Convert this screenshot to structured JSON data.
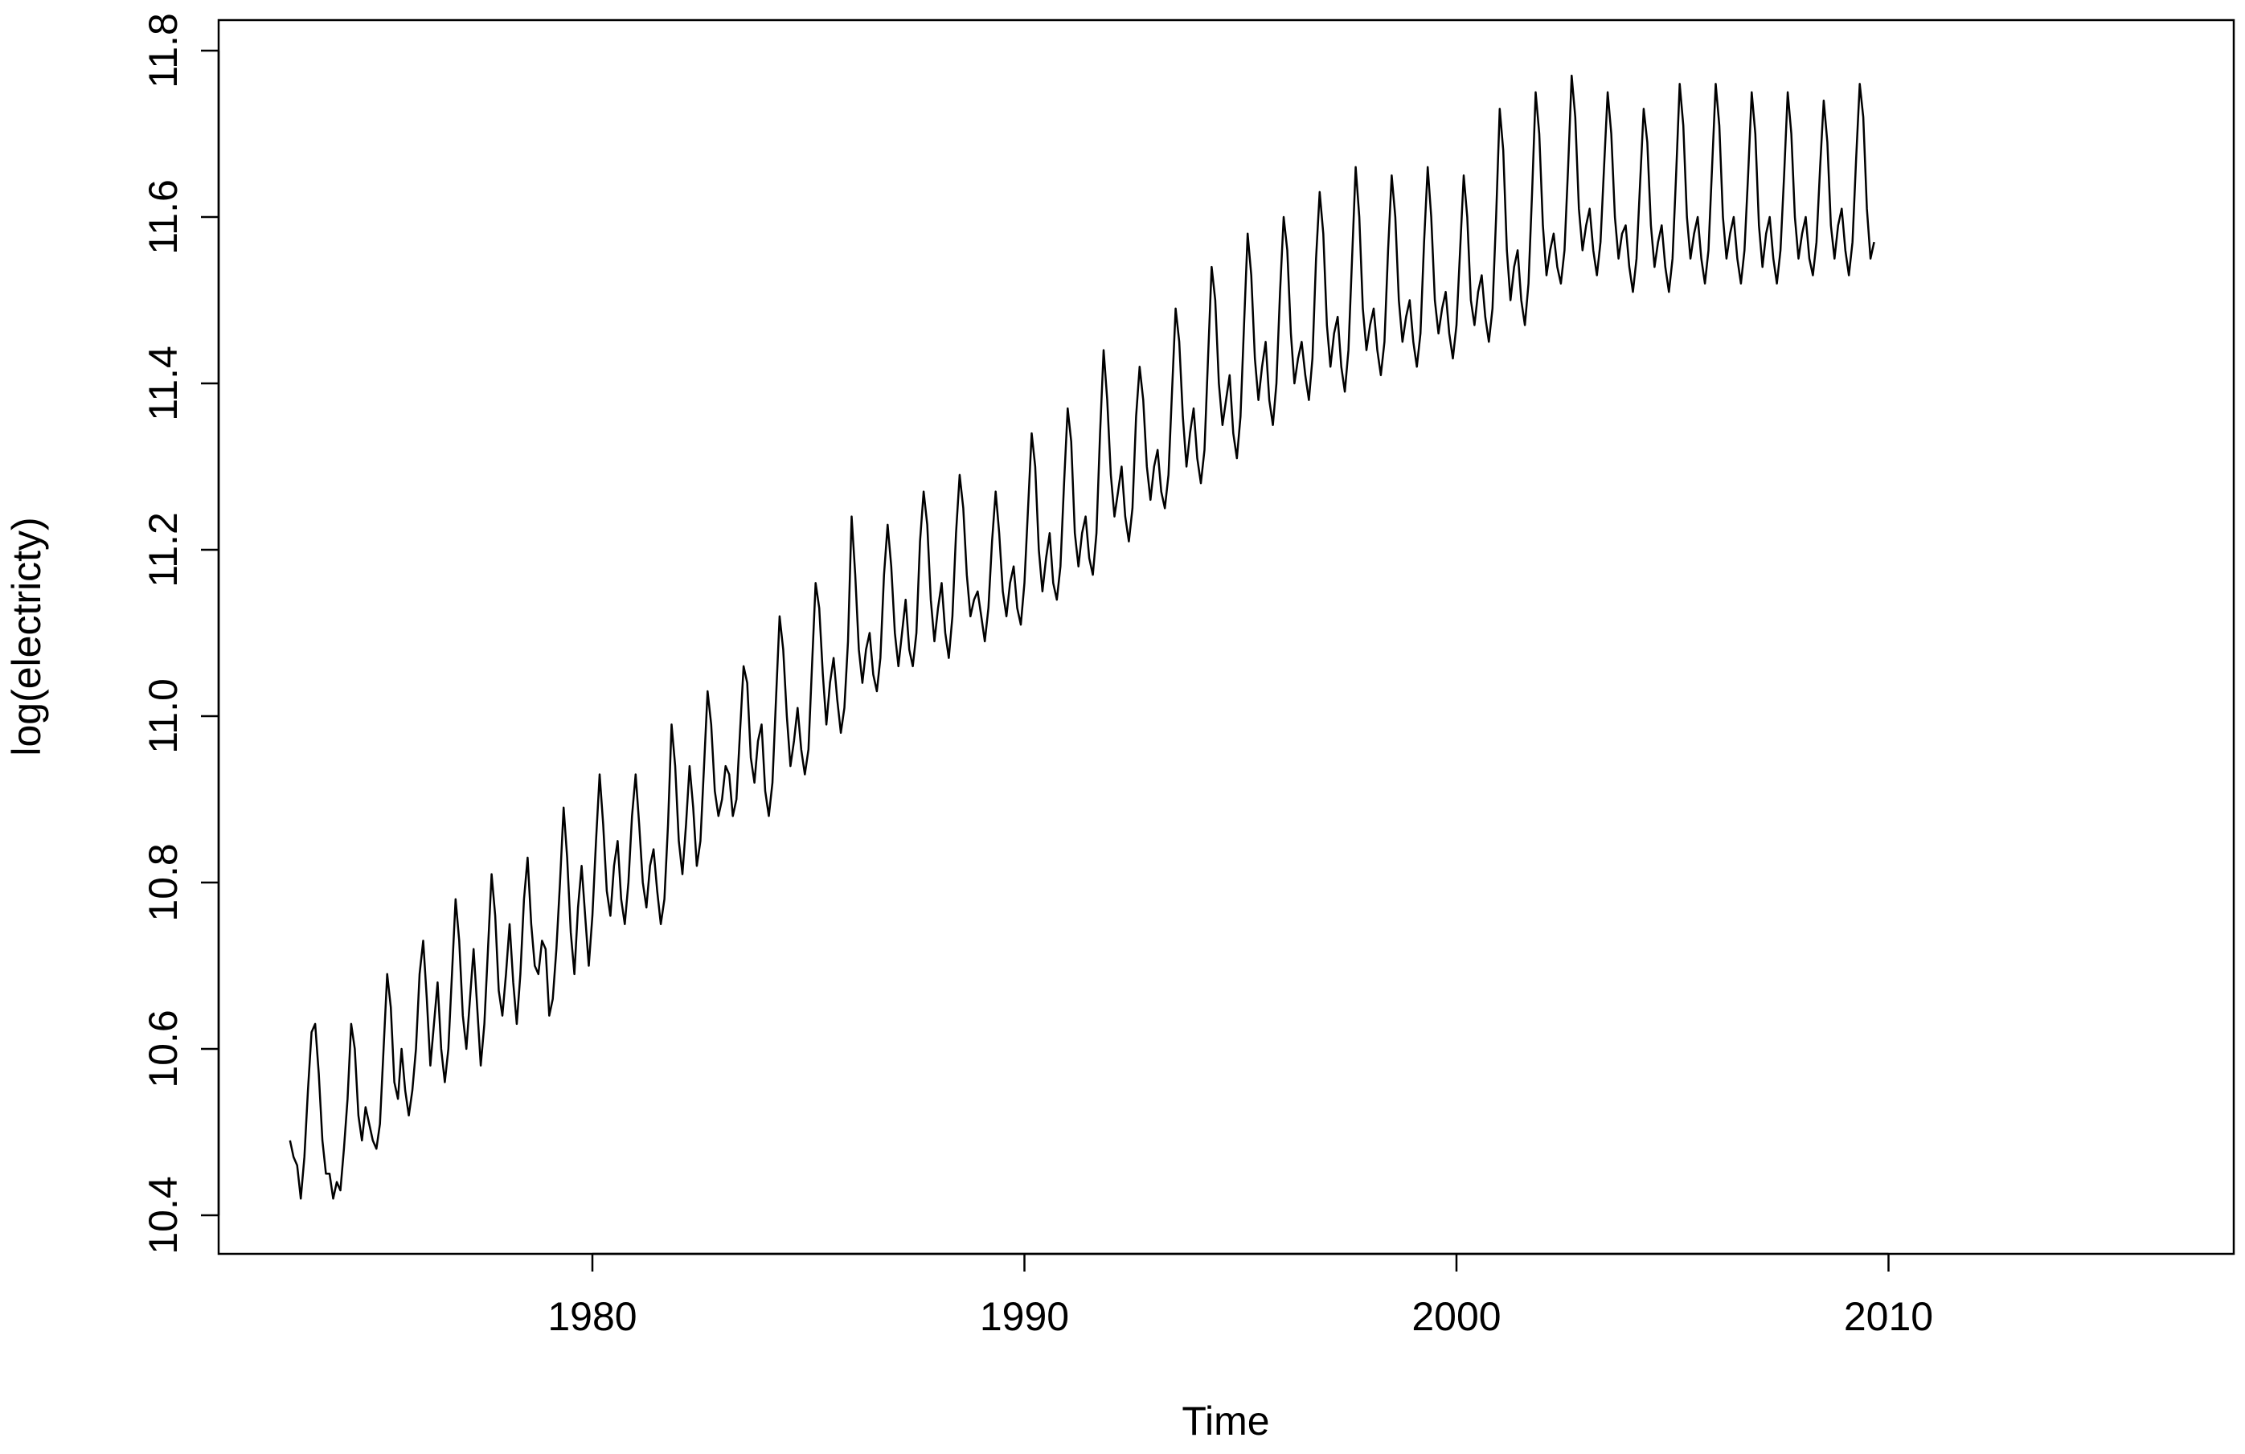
{
  "chart_data": {
    "type": "line",
    "title": "",
    "xlabel": "Time",
    "ylabel": "log(electricty)",
    "xlim": [
      1973,
      2016
    ],
    "ylim": [
      10.4,
      11.8
    ],
    "x_ticks": [
      1980,
      1990,
      2000,
      2010
    ],
    "x_tick_labels": [
      "1980",
      "1990",
      "2000",
      "2010"
    ],
    "y_ticks": [
      10.4,
      10.6,
      10.8,
      11.0,
      11.2,
      11.4,
      11.6,
      11.8
    ],
    "y_tick_labels": [
      "10.4",
      "10.6",
      "10.8",
      "11.0",
      "11.2",
      "11.4",
      "11.6",
      "11.8"
    ],
    "grid": false,
    "legend": "none",
    "line_color": "#000000",
    "series": [
      {
        "frequency": "monthly",
        "start": 1973.0,
        "values": [
          10.49,
          10.47,
          10.46,
          10.42,
          10.47,
          10.55,
          10.62,
          10.63,
          10.57,
          10.49,
          10.45,
          10.45,
          10.42,
          10.44,
          10.43,
          10.48,
          10.54,
          10.63,
          10.6,
          10.52,
          10.49,
          10.53,
          10.51,
          10.49,
          10.48,
          10.51,
          10.6,
          10.69,
          10.65,
          10.56,
          10.54,
          10.6,
          10.55,
          10.52,
          10.55,
          10.6,
          10.69,
          10.73,
          10.66,
          10.58,
          10.63,
          10.68,
          10.6,
          10.56,
          10.6,
          10.69,
          10.78,
          10.73,
          10.64,
          10.6,
          10.66,
          10.72,
          10.65,
          10.58,
          10.63,
          10.72,
          10.81,
          10.76,
          10.67,
          10.64,
          10.69,
          10.75,
          10.68,
          10.63,
          10.69,
          10.78,
          10.83,
          10.75,
          10.7,
          10.69,
          10.73,
          10.72,
          10.64,
          10.66,
          10.72,
          10.8,
          10.89,
          10.83,
          10.74,
          10.69,
          10.77,
          10.82,
          10.76,
          10.7,
          10.76,
          10.85,
          10.93,
          10.87,
          10.79,
          10.76,
          10.82,
          10.85,
          10.78,
          10.75,
          10.8,
          10.88,
          10.93,
          10.87,
          10.8,
          10.77,
          10.82,
          10.84,
          10.79,
          10.75,
          10.78,
          10.87,
          10.99,
          10.94,
          10.85,
          10.81,
          10.87,
          10.94,
          10.89,
          10.82,
          10.85,
          10.94,
          11.03,
          10.99,
          10.91,
          10.88,
          10.9,
          10.94,
          10.93,
          10.88,
          10.9,
          10.98,
          11.06,
          11.04,
          10.95,
          10.92,
          10.97,
          10.99,
          10.91,
          10.88,
          10.92,
          11.02,
          11.12,
          11.08,
          11.0,
          10.94,
          10.97,
          11.01,
          10.96,
          10.93,
          10.96,
          11.06,
          11.16,
          11.13,
          11.05,
          10.99,
          11.04,
          11.07,
          11.02,
          10.98,
          11.01,
          11.09,
          11.24,
          11.17,
          11.08,
          11.04,
          11.08,
          11.1,
          11.05,
          11.03,
          11.07,
          11.17,
          11.23,
          11.18,
          11.1,
          11.06,
          11.1,
          11.14,
          11.08,
          11.06,
          11.1,
          11.21,
          11.27,
          11.23,
          11.14,
          11.09,
          11.13,
          11.16,
          11.1,
          11.07,
          11.12,
          11.22,
          11.29,
          11.25,
          11.17,
          11.12,
          11.14,
          11.15,
          11.12,
          11.09,
          11.13,
          11.21,
          11.27,
          11.22,
          11.15,
          11.12,
          11.16,
          11.18,
          11.13,
          11.11,
          11.16,
          11.25,
          11.34,
          11.3,
          11.2,
          11.15,
          11.19,
          11.22,
          11.16,
          11.14,
          11.18,
          11.28,
          11.37,
          11.33,
          11.22,
          11.18,
          11.22,
          11.24,
          11.19,
          11.17,
          11.22,
          11.34,
          11.44,
          11.38,
          11.29,
          11.24,
          11.27,
          11.3,
          11.24,
          11.21,
          11.25,
          11.36,
          11.42,
          11.38,
          11.3,
          11.26,
          11.3,
          11.32,
          11.27,
          11.25,
          11.29,
          11.39,
          11.49,
          11.45,
          11.36,
          11.3,
          11.34,
          11.37,
          11.31,
          11.28,
          11.32,
          11.43,
          11.54,
          11.5,
          11.4,
          11.35,
          11.38,
          11.41,
          11.34,
          11.31,
          11.36,
          11.47,
          11.58,
          11.53,
          11.43,
          11.38,
          11.42,
          11.45,
          11.38,
          11.35,
          11.4,
          11.51,
          11.6,
          11.56,
          11.46,
          11.4,
          11.43,
          11.45,
          11.41,
          11.38,
          11.43,
          11.55,
          11.63,
          11.58,
          11.47,
          11.42,
          11.46,
          11.48,
          11.42,
          11.39,
          11.44,
          11.55,
          11.66,
          11.6,
          11.49,
          11.44,
          11.47,
          11.49,
          11.44,
          11.41,
          11.45,
          11.56,
          11.65,
          11.6,
          11.5,
          11.45,
          11.48,
          11.5,
          11.45,
          11.42,
          11.46,
          11.57,
          11.66,
          11.6,
          11.5,
          11.46,
          11.49,
          11.51,
          11.46,
          11.43,
          11.47,
          11.56,
          11.65,
          11.6,
          11.5,
          11.47,
          11.51,
          11.53,
          11.48,
          11.45,
          11.49,
          11.6,
          11.73,
          11.68,
          11.56,
          11.5,
          11.54,
          11.56,
          11.5,
          11.47,
          11.52,
          11.63,
          11.75,
          11.7,
          11.59,
          11.53,
          11.56,
          11.58,
          11.54,
          11.52,
          11.56,
          11.66,
          11.77,
          11.72,
          11.61,
          11.56,
          11.59,
          11.61,
          11.56,
          11.53,
          11.57,
          11.66,
          11.75,
          11.7,
          11.6,
          11.55,
          11.58,
          11.59,
          11.54,
          11.51,
          11.55,
          11.64,
          11.73,
          11.69,
          11.59,
          11.54,
          11.57,
          11.59,
          11.54,
          11.51,
          11.55,
          11.65,
          11.76,
          11.71,
          11.6,
          11.55,
          11.58,
          11.6,
          11.55,
          11.52,
          11.56,
          11.66,
          11.76,
          11.71,
          11.6,
          11.55,
          11.58,
          11.6,
          11.55,
          11.52,
          11.56,
          11.65,
          11.75,
          11.7,
          11.59,
          11.54,
          11.58,
          11.6,
          11.55,
          11.52,
          11.56,
          11.65,
          11.75,
          11.7,
          11.6,
          11.55,
          11.58,
          11.6,
          11.55,
          11.53,
          11.57,
          11.66,
          11.74,
          11.69,
          11.59,
          11.55,
          11.59,
          11.61,
          11.56,
          11.53,
          11.57,
          11.67,
          11.76,
          11.72,
          11.61,
          11.55,
          11.57
        ]
      }
    ]
  }
}
